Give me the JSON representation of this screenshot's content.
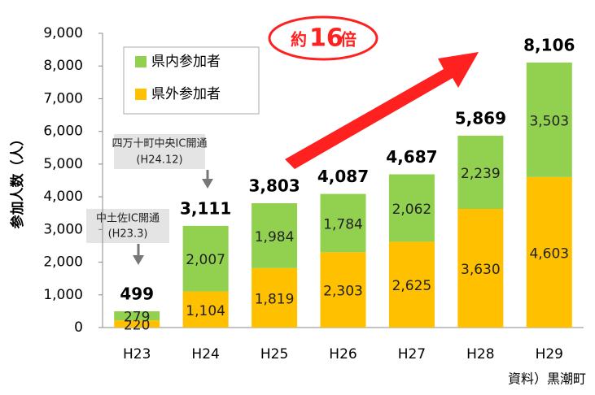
{
  "chart_data": {
    "type": "stacked_bar",
    "y_label": "参加人数（人）",
    "categories": [
      "H23",
      "H24",
      "H25",
      "H26",
      "H27",
      "H28",
      "H29"
    ],
    "series": [
      {
        "name": "県外参加者",
        "color": "#ffc000",
        "values": [
          220,
          1104,
          1819,
          2303,
          2625,
          3630,
          4603
        ],
        "value_labels": [
          "220",
          "1,104",
          "1,819",
          "2,303",
          "2,625",
          "3,630",
          "4,603"
        ]
      },
      {
        "name": "県内参加者",
        "color": "#92d050",
        "values": [
          279,
          2007,
          1984,
          1784,
          2062,
          2239,
          3503
        ],
        "value_labels": [
          "279",
          "2,007",
          "1,984",
          "1,784",
          "2,062",
          "2,239",
          "3,503"
        ]
      }
    ],
    "totals": [
      499,
      3111,
      3803,
      4087,
      4687,
      5869,
      8106
    ],
    "total_labels": [
      "499",
      "3,111",
      "3,803",
      "4,087",
      "4,687",
      "5,869",
      "8,106"
    ],
    "ylim": [
      0,
      9000
    ],
    "yticks": [
      0,
      {
        "value": 1000,
        "label": "1,000"
      },
      {
        "value": 2000,
        "label": "2,000"
      },
      {
        "value": 3000,
        "label": "3,000"
      },
      {
        "value": 4000,
        "label": "4,000"
      },
      {
        "value": 5000,
        "label": "5,000"
      },
      {
        "value": 6000,
        "label": "6,000"
      },
      {
        "value": 7000,
        "label": "7,000"
      },
      {
        "value": 8000,
        "label": "8,000"
      },
      {
        "value": 9000,
        "label": "9,000"
      }
    ],
    "badge": [
      "約",
      "16",
      "倍"
    ],
    "callouts": [
      {
        "lines": [
          "中土佐IC開通",
          "(H23.3)"
        ]
      },
      {
        "lines": [
          "四万十町中央IC開通",
          "(H24.12)"
        ]
      }
    ],
    "source": "資料）黒潮町"
  }
}
